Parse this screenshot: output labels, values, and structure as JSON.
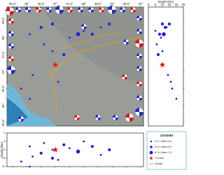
{
  "chart_data": {
    "type": "seismicity-map",
    "map": {
      "xlim": [
        35.3,
        40.1
      ],
      "ylim": [
        35.4,
        38.9
      ],
      "xticks": [
        {
          "value": 35.5,
          "label": "35.5°"
        },
        {
          "value": 36,
          "label": "36°"
        },
        {
          "value": 36.5,
          "label": "36.5°"
        },
        {
          "value": 37,
          "label": "37°"
        },
        {
          "value": 37.5,
          "label": "37.5°"
        },
        {
          "value": 38,
          "label": "38°"
        },
        {
          "value": 38.5,
          "label": "38.5°"
        },
        {
          "value": 39,
          "label": "39°"
        },
        {
          "value": 39.5,
          "label": "39.5°"
        },
        {
          "value": 40,
          "label": "40°"
        }
      ],
      "yticks": [
        {
          "value": 35.5,
          "label": "35.5°"
        },
        {
          "value": 36,
          "label": "36°"
        },
        {
          "value": 36.5,
          "label": "36.5°"
        },
        {
          "value": 37,
          "label": "37°"
        },
        {
          "value": 37.5,
          "label": "37.5°"
        },
        {
          "value": 38,
          "label": "38°"
        },
        {
          "value": 38.5,
          "label": "38.5°"
        }
      ]
    },
    "depth_right": {
      "xlabel": "Depth (km)",
      "xlim": [
        0,
        25
      ],
      "xticks": [
        0,
        5,
        10,
        15,
        20,
        25
      ]
    },
    "depth_bottom": {
      "ylabel": "Depth (km)",
      "ylim": [
        0,
        20
      ],
      "yticks": [
        0,
        5,
        10,
        15,
        20
      ]
    },
    "dot_color": "#1f22d6",
    "star_color": "#e11b1b",
    "fault_color": "#e6a21a",
    "events": {
      "lon": [
        36.1,
        36.5,
        36.6,
        36.9,
        37.0,
        37.3,
        37.5,
        37.8,
        38.0,
        38.3,
        38.6,
        38.9,
        36.2,
        36.1,
        35.8,
        37.1,
        36.9
      ],
      "lat": [
        38.1,
        38.3,
        37.8,
        37.6,
        37.2,
        37.5,
        38.0,
        38.1,
        38.2,
        38.1,
        38.3,
        38.4,
        36.9,
        36.2,
        36.5,
        36.7,
        38.4
      ],
      "depth": [
        8,
        12,
        6,
        10,
        10,
        7,
        9,
        11,
        5,
        8,
        13,
        10,
        14,
        20,
        17,
        16,
        15
      ],
      "mw": [
        4.5,
        5.2,
        4.4,
        4.8,
        7.8,
        5.5,
        4.6,
        6.2,
        4.3,
        5.0,
        4.7,
        5.3,
        4.5,
        4.9,
        4.2,
        4.4,
        5.6
      ]
    },
    "legend": {
      "title": "LEGEND",
      "items": [
        {
          "label": "4.1 ≤ Mw<5.0",
          "symbol": "small"
        },
        {
          "label": "5.0 ≤ Mw<6.0",
          "symbol": "medium"
        },
        {
          "label": "6.0 ≤ Mw<7.4",
          "symbol": "large"
        },
        {
          "label": "7.8 Mw",
          "symbol": "star"
        },
        {
          "label": "Faults",
          "symbol": "line"
        }
      ]
    }
  }
}
